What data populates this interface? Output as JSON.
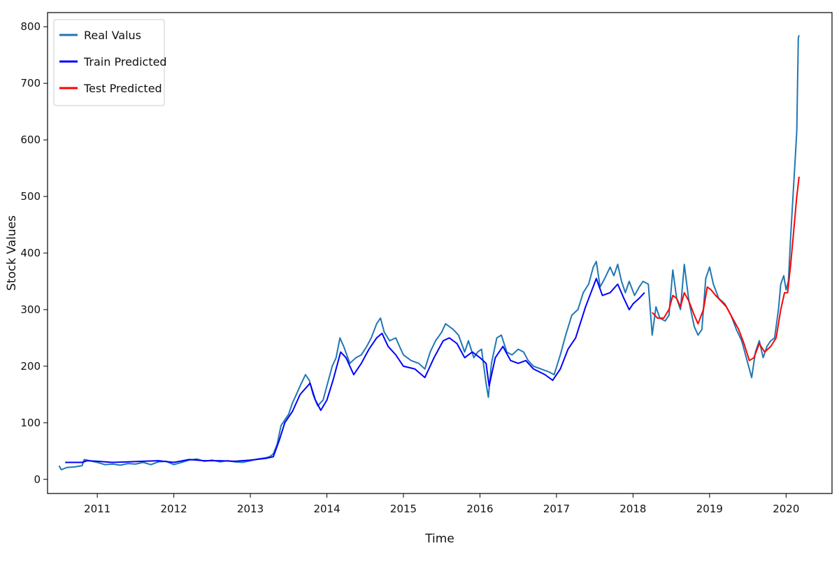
{
  "chart_data": {
    "type": "line",
    "title": "",
    "xlabel": "Time",
    "ylabel": "Stock Values",
    "xlim": [
      2010.35,
      2020.6
    ],
    "ylim": [
      -25,
      825
    ],
    "x_ticks": [
      "2011",
      "2012",
      "2013",
      "2014",
      "2015",
      "2016",
      "2017",
      "2018",
      "2019",
      "2020"
    ],
    "y_ticks": [
      "0",
      "100",
      "200",
      "300",
      "400",
      "500",
      "600",
      "700",
      "800"
    ],
    "grid": false,
    "legend_position": "top-left",
    "series": [
      {
        "name": "Real Valus",
        "color": "#1f77b4",
        "points": [
          [
            2010.5,
            24
          ],
          [
            2010.53,
            17
          ],
          [
            2010.6,
            21
          ],
          [
            2010.7,
            22
          ],
          [
            2010.8,
            24
          ],
          [
            2010.83,
            35
          ],
          [
            2010.9,
            33
          ],
          [
            2011.0,
            30
          ],
          [
            2011.1,
            26
          ],
          [
            2011.2,
            27
          ],
          [
            2011.3,
            25
          ],
          [
            2011.4,
            28
          ],
          [
            2011.5,
            27
          ],
          [
            2011.6,
            30
          ],
          [
            2011.7,
            26
          ],
          [
            2011.8,
            31
          ],
          [
            2011.9,
            32
          ],
          [
            2012.0,
            26
          ],
          [
            2012.1,
            30
          ],
          [
            2012.2,
            34
          ],
          [
            2012.3,
            36
          ],
          [
            2012.4,
            32
          ],
          [
            2012.5,
            34
          ],
          [
            2012.6,
            31
          ],
          [
            2012.7,
            33
          ],
          [
            2012.8,
            31
          ],
          [
            2012.9,
            30
          ],
          [
            2013.0,
            33
          ],
          [
            2013.1,
            36
          ],
          [
            2013.2,
            38
          ],
          [
            2013.25,
            40
          ],
          [
            2013.3,
            45
          ],
          [
            2013.35,
            62
          ],
          [
            2013.4,
            95
          ],
          [
            2013.45,
            105
          ],
          [
            2013.5,
            115
          ],
          [
            2013.55,
            135
          ],
          [
            2013.6,
            150
          ],
          [
            2013.65,
            165
          ],
          [
            2013.72,
            185
          ],
          [
            2013.77,
            175
          ],
          [
            2013.82,
            150
          ],
          [
            2013.88,
            130
          ],
          [
            2013.95,
            140
          ],
          [
            2014.0,
            165
          ],
          [
            2014.07,
            200
          ],
          [
            2014.12,
            215
          ],
          [
            2014.17,
            250
          ],
          [
            2014.22,
            235
          ],
          [
            2014.3,
            205
          ],
          [
            2014.38,
            215
          ],
          [
            2014.45,
            220
          ],
          [
            2014.52,
            235
          ],
          [
            2014.58,
            250
          ],
          [
            2014.65,
            275
          ],
          [
            2014.7,
            285
          ],
          [
            2014.75,
            260
          ],
          [
            2014.82,
            245
          ],
          [
            2014.9,
            250
          ],
          [
            2014.95,
            235
          ],
          [
            2015.0,
            220
          ],
          [
            2015.1,
            210
          ],
          [
            2015.2,
            205
          ],
          [
            2015.28,
            195
          ],
          [
            2015.35,
            225
          ],
          [
            2015.42,
            245
          ],
          [
            2015.5,
            260
          ],
          [
            2015.55,
            275
          ],
          [
            2015.6,
            270
          ],
          [
            2015.65,
            265
          ],
          [
            2015.72,
            255
          ],
          [
            2015.8,
            225
          ],
          [
            2015.85,
            245
          ],
          [
            2015.92,
            215
          ],
          [
            2015.97,
            225
          ],
          [
            2016.02,
            230
          ],
          [
            2016.08,
            170
          ],
          [
            2016.11,
            145
          ],
          [
            2016.15,
            205
          ],
          [
            2016.22,
            250
          ],
          [
            2016.28,
            255
          ],
          [
            2016.35,
            225
          ],
          [
            2016.42,
            220
          ],
          [
            2016.5,
            230
          ],
          [
            2016.57,
            225
          ],
          [
            2016.63,
            210
          ],
          [
            2016.7,
            200
          ],
          [
            2016.8,
            195
          ],
          [
            2016.9,
            190
          ],
          [
            2016.97,
            185
          ],
          [
            2017.05,
            220
          ],
          [
            2017.12,
            255
          ],
          [
            2017.2,
            290
          ],
          [
            2017.28,
            300
          ],
          [
            2017.35,
            330
          ],
          [
            2017.42,
            345
          ],
          [
            2017.48,
            375
          ],
          [
            2017.52,
            385
          ],
          [
            2017.57,
            340
          ],
          [
            2017.63,
            355
          ],
          [
            2017.7,
            375
          ],
          [
            2017.75,
            360
          ],
          [
            2017.8,
            380
          ],
          [
            2017.85,
            350
          ],
          [
            2017.9,
            330
          ],
          [
            2017.95,
            350
          ],
          [
            2018.02,
            325
          ],
          [
            2018.08,
            340
          ],
          [
            2018.13,
            350
          ],
          [
            2018.2,
            345
          ],
          [
            2018.25,
            255
          ],
          [
            2018.3,
            305
          ],
          [
            2018.35,
            285
          ],
          [
            2018.42,
            280
          ],
          [
            2018.47,
            290
          ],
          [
            2018.52,
            370
          ],
          [
            2018.57,
            320
          ],
          [
            2018.62,
            300
          ],
          [
            2018.67,
            380
          ],
          [
            2018.73,
            315
          ],
          [
            2018.8,
            270
          ],
          [
            2018.85,
            255
          ],
          [
            2018.9,
            265
          ],
          [
            2018.95,
            355
          ],
          [
            2019.0,
            375
          ],
          [
            2019.05,
            345
          ],
          [
            2019.12,
            320
          ],
          [
            2019.2,
            310
          ],
          [
            2019.28,
            290
          ],
          [
            2019.35,
            265
          ],
          [
            2019.42,
            245
          ],
          [
            2019.5,
            205
          ],
          [
            2019.55,
            180
          ],
          [
            2019.6,
            225
          ],
          [
            2019.65,
            245
          ],
          [
            2019.7,
            215
          ],
          [
            2019.75,
            235
          ],
          [
            2019.8,
            245
          ],
          [
            2019.85,
            250
          ],
          [
            2019.9,
            300
          ],
          [
            2019.93,
            345
          ],
          [
            2019.97,
            360
          ],
          [
            2020.0,
            335
          ],
          [
            2020.03,
            350
          ],
          [
            2020.06,
            430
          ],
          [
            2020.09,
            500
          ],
          [
            2020.12,
            570
          ],
          [
            2020.14,
            615
          ],
          [
            2020.16,
            780
          ],
          [
            2020.17,
            785
          ]
        ]
      },
      {
        "name": "Train Predicted",
        "color": "#0000ff",
        "points": [
          [
            2010.58,
            30
          ],
          [
            2010.8,
            30
          ],
          [
            2010.87,
            33
          ],
          [
            2011.0,
            32
          ],
          [
            2011.2,
            30
          ],
          [
            2011.4,
            31
          ],
          [
            2011.6,
            32
          ],
          [
            2011.8,
            33
          ],
          [
            2012.0,
            30
          ],
          [
            2012.2,
            35
          ],
          [
            2012.4,
            33
          ],
          [
            2012.6,
            33
          ],
          [
            2012.8,
            32
          ],
          [
            2013.0,
            34
          ],
          [
            2013.2,
            37
          ],
          [
            2013.3,
            40
          ],
          [
            2013.38,
            70
          ],
          [
            2013.45,
            100
          ],
          [
            2013.55,
            120
          ],
          [
            2013.65,
            150
          ],
          [
            2013.78,
            170
          ],
          [
            2013.85,
            140
          ],
          [
            2013.92,
            122
          ],
          [
            2014.0,
            140
          ],
          [
            2014.08,
            175
          ],
          [
            2014.18,
            225
          ],
          [
            2014.25,
            215
          ],
          [
            2014.35,
            185
          ],
          [
            2014.45,
            205
          ],
          [
            2014.55,
            230
          ],
          [
            2014.65,
            250
          ],
          [
            2014.72,
            258
          ],
          [
            2014.8,
            235
          ],
          [
            2014.9,
            220
          ],
          [
            2015.0,
            200
          ],
          [
            2015.15,
            195
          ],
          [
            2015.28,
            180
          ],
          [
            2015.4,
            215
          ],
          [
            2015.52,
            245
          ],
          [
            2015.6,
            250
          ],
          [
            2015.7,
            240
          ],
          [
            2015.8,
            215
          ],
          [
            2015.9,
            225
          ],
          [
            2016.0,
            215
          ],
          [
            2016.08,
            205
          ],
          [
            2016.12,
            165
          ],
          [
            2016.2,
            215
          ],
          [
            2016.3,
            235
          ],
          [
            2016.4,
            210
          ],
          [
            2016.5,
            205
          ],
          [
            2016.6,
            210
          ],
          [
            2016.7,
            195
          ],
          [
            2016.85,
            185
          ],
          [
            2016.95,
            175
          ],
          [
            2017.05,
            195
          ],
          [
            2017.15,
            230
          ],
          [
            2017.25,
            250
          ],
          [
            2017.38,
            305
          ],
          [
            2017.45,
            330
          ],
          [
            2017.52,
            355
          ],
          [
            2017.6,
            325
          ],
          [
            2017.7,
            330
          ],
          [
            2017.8,
            345
          ],
          [
            2017.88,
            320
          ],
          [
            2017.95,
            300
          ],
          [
            2018.0,
            310
          ],
          [
            2018.08,
            320
          ],
          [
            2018.15,
            330
          ]
        ]
      },
      {
        "name": "Test Predicted",
        "color": "#ff0000",
        "points": [
          [
            2018.25,
            295
          ],
          [
            2018.32,
            285
          ],
          [
            2018.4,
            285
          ],
          [
            2018.47,
            300
          ],
          [
            2018.52,
            325
          ],
          [
            2018.57,
            320
          ],
          [
            2018.62,
            305
          ],
          [
            2018.67,
            330
          ],
          [
            2018.73,
            315
          ],
          [
            2018.8,
            290
          ],
          [
            2018.85,
            275
          ],
          [
            2018.92,
            300
          ],
          [
            2018.97,
            340
          ],
          [
            2019.02,
            335
          ],
          [
            2019.08,
            325
          ],
          [
            2019.15,
            315
          ],
          [
            2019.22,
            305
          ],
          [
            2019.3,
            285
          ],
          [
            2019.38,
            265
          ],
          [
            2019.45,
            240
          ],
          [
            2019.52,
            210
          ],
          [
            2019.58,
            215
          ],
          [
            2019.65,
            240
          ],
          [
            2019.72,
            225
          ],
          [
            2019.8,
            235
          ],
          [
            2019.87,
            250
          ],
          [
            2019.93,
            300
          ],
          [
            2019.98,
            330
          ],
          [
            2020.02,
            330
          ],
          [
            2020.06,
            380
          ],
          [
            2020.1,
            440
          ],
          [
            2020.14,
            500
          ],
          [
            2020.17,
            535
          ]
        ]
      }
    ]
  }
}
